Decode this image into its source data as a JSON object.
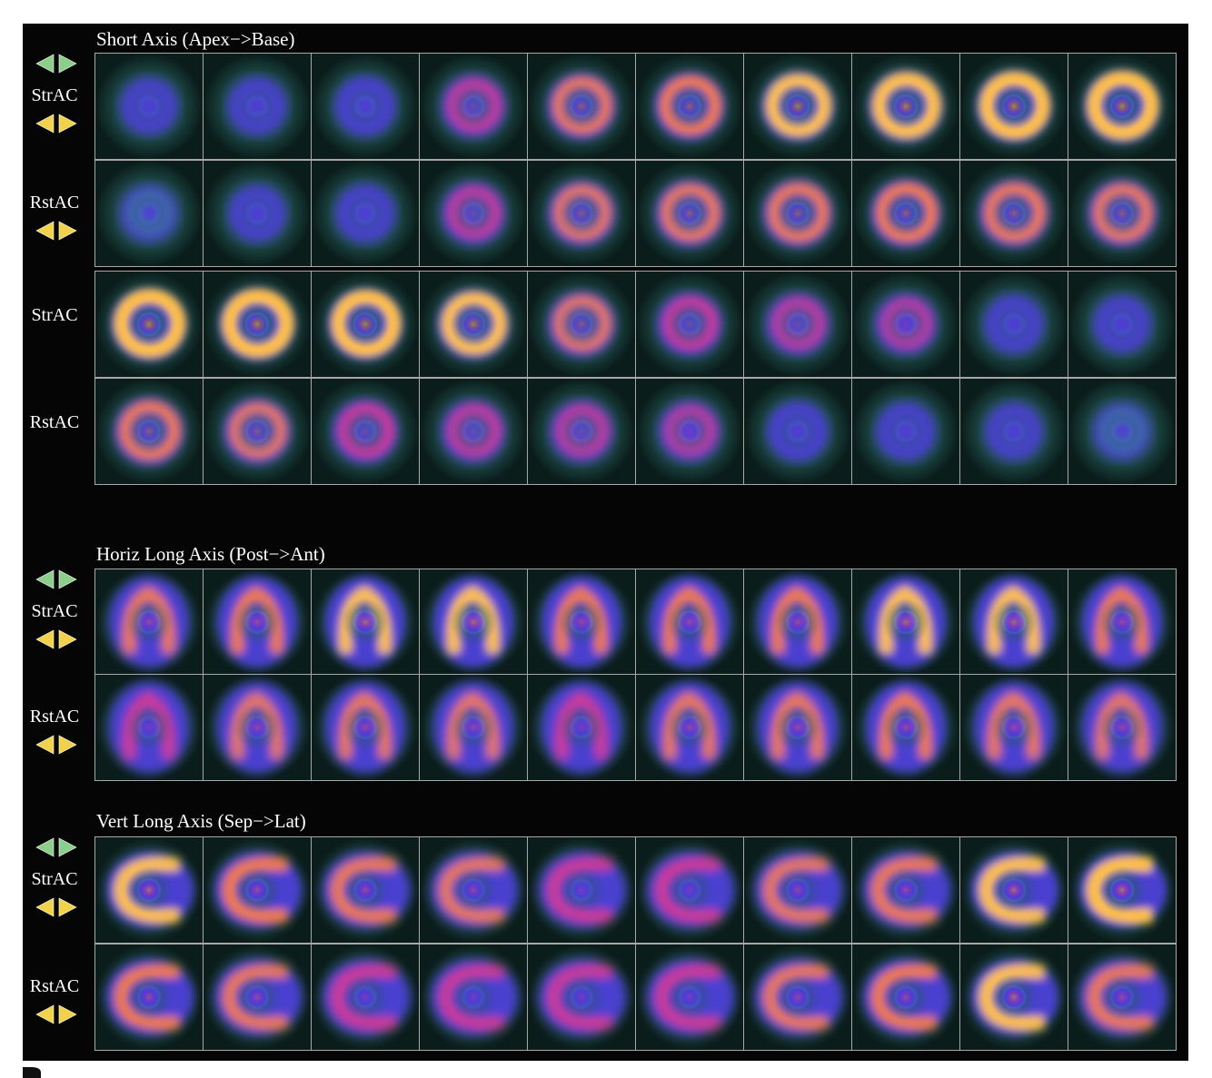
{
  "sections": [
    {
      "title": "Short Axis (Apex−>Base)",
      "view": "short-axis",
      "rows": [
        {
          "label": "StrAC",
          "arrows_above": true,
          "arrows_below": true,
          "type": "short-early",
          "intensity": [
            0.15,
            0.2,
            0.28,
            0.4,
            0.55,
            0.62,
            0.7,
            0.78,
            0.82,
            0.85
          ]
        },
        {
          "label": "RstAC",
          "arrows_above": false,
          "arrows_below": true,
          "type": "short-early",
          "intensity": [
            0.12,
            0.15,
            0.22,
            0.38,
            0.5,
            0.55,
            0.6,
            0.62,
            0.6,
            0.55
          ]
        },
        {
          "label": "StrAC",
          "arrows_above": false,
          "arrows_below": false,
          "type": "short-late",
          "intensity": [
            0.85,
            0.85,
            0.8,
            0.7,
            0.5,
            0.42,
            0.35,
            0.3,
            0.22,
            0.15
          ]
        },
        {
          "label": "RstAC",
          "arrows_above": false,
          "arrows_below": false,
          "type": "short-late",
          "intensity": [
            0.6,
            0.5,
            0.45,
            0.38,
            0.35,
            0.3,
            0.28,
            0.22,
            0.16,
            0.12
          ]
        }
      ]
    },
    {
      "title": "Horiz Long Axis (Post−>Ant)",
      "view": "horizontal-long-axis",
      "rows": [
        {
          "label": "StrAC",
          "arrows_above": true,
          "arrows_below": true,
          "type": "hla",
          "intensity": [
            0.6,
            0.65,
            0.7,
            0.72,
            0.65,
            0.62,
            0.65,
            0.72,
            0.7,
            0.62
          ]
        },
        {
          "label": "RstAC",
          "arrows_above": false,
          "arrows_below": true,
          "type": "hla",
          "intensity": [
            0.45,
            0.5,
            0.55,
            0.5,
            0.48,
            0.55,
            0.6,
            0.65,
            0.58,
            0.5
          ]
        }
      ]
    },
    {
      "title": "Vert Long Axis (Sep−>Lat)",
      "view": "vertical-long-axis",
      "rows": [
        {
          "label": "StrAC",
          "arrows_above": true,
          "arrows_below": true,
          "type": "vla",
          "intensity": [
            0.7,
            0.68,
            0.6,
            0.5,
            0.45,
            0.45,
            0.5,
            0.6,
            0.7,
            0.85
          ]
        },
        {
          "label": "RstAC",
          "arrows_above": false,
          "arrows_below": true,
          "type": "vla",
          "intensity": [
            0.62,
            0.55,
            0.48,
            0.42,
            0.42,
            0.45,
            0.52,
            0.62,
            0.72,
            0.6
          ]
        }
      ]
    }
  ],
  "colors": {
    "background": "#050505",
    "frame_border": "#a8a8a8",
    "text": "#ffffff",
    "arrow_green": "#8ccf8a",
    "arrow_yellow": "#f2d24a",
    "colormap": [
      "#0d2622",
      "#1f5a55",
      "#3a7f92",
      "#4a3fd0",
      "#8a2fc8",
      "#d43a8c",
      "#f07a3a",
      "#ffc040",
      "#fff0b0"
    ]
  },
  "icons": {
    "arrows_above": "green-left-right-arrows-icon",
    "arrows_below": "yellow-left-right-arrows-icon"
  }
}
